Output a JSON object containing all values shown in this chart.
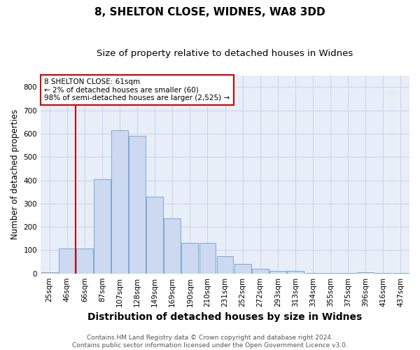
{
  "title1": "8, SHELTON CLOSE, WIDNES, WA8 3DD",
  "title2": "Size of property relative to detached houses in Widnes",
  "xlabel": "Distribution of detached houses by size in Widnes",
  "ylabel": "Number of detached properties",
  "categories": [
    "25sqm",
    "46sqm",
    "66sqm",
    "87sqm",
    "107sqm",
    "128sqm",
    "149sqm",
    "169sqm",
    "190sqm",
    "210sqm",
    "231sqm",
    "252sqm",
    "272sqm",
    "293sqm",
    "313sqm",
    "334sqm",
    "355sqm",
    "375sqm",
    "396sqm",
    "416sqm",
    "437sqm"
  ],
  "values": [
    5,
    107,
    107,
    405,
    615,
    590,
    330,
    235,
    130,
    130,
    75,
    40,
    20,
    12,
    10,
    2,
    1,
    1,
    5,
    1,
    1
  ],
  "bar_color": "#ccd9f0",
  "bar_edge_color": "#7aaad4",
  "grid_color": "#c8d4e8",
  "background_color": "#e8eef8",
  "vline_color": "#cc0000",
  "vline_x": 1.5,
  "annotation_text": "8 SHELTON CLOSE: 61sqm\n← 2% of detached houses are smaller (60)\n98% of semi-detached houses are larger (2,525) →",
  "annotation_box_color": "#cc0000",
  "ylim": [
    0,
    850
  ],
  "yticks": [
    0,
    100,
    200,
    300,
    400,
    500,
    600,
    700,
    800
  ],
  "footer": "Contains HM Land Registry data © Crown copyright and database right 2024.\nContains public sector information licensed under the Open Government Licence v3.0.",
  "title1_fontsize": 11,
  "title2_fontsize": 9.5,
  "xlabel_fontsize": 10,
  "ylabel_fontsize": 8.5,
  "tick_fontsize": 7.5,
  "footer_fontsize": 6.5,
  "annotation_fontsize": 7.5
}
